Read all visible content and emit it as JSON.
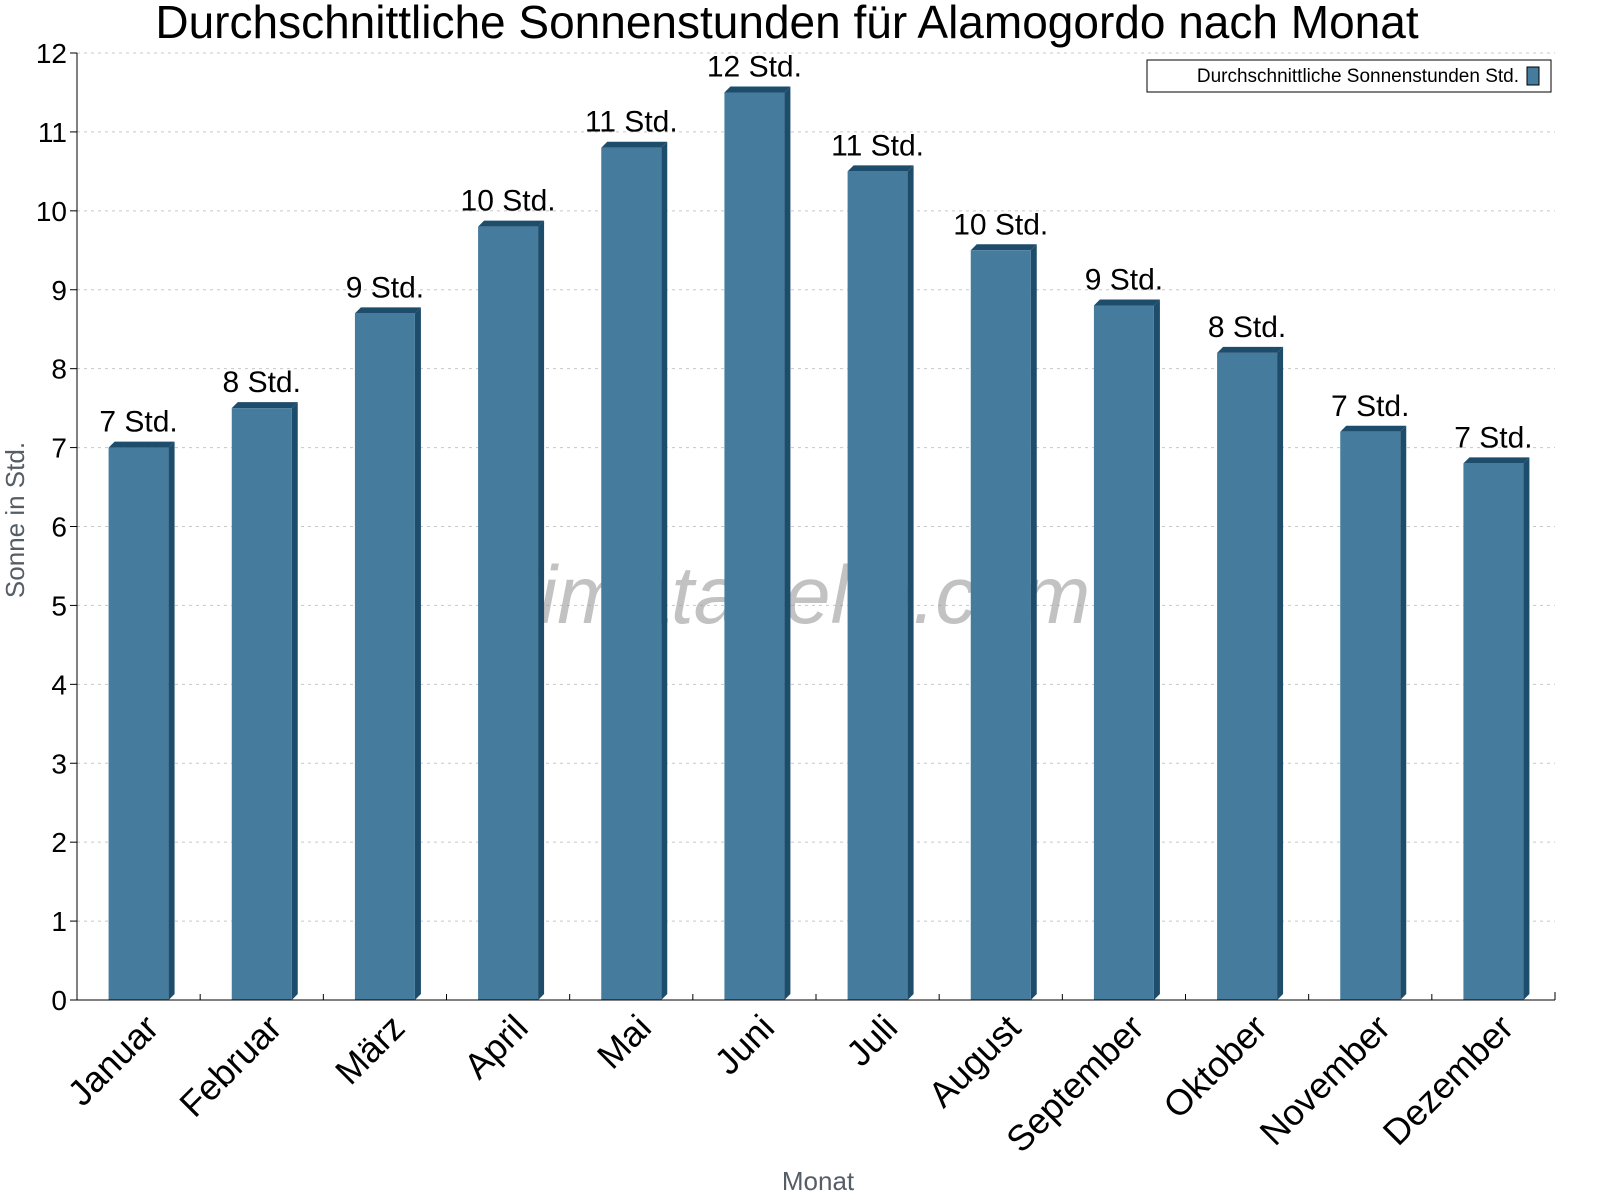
{
  "chart_data": {
    "type": "bar",
    "title": "Durchschnittliche Sonnenstunden für Alamogordo nach Monat",
    "xlabel": "Monat",
    "ylabel": "Sonne in Std.",
    "ylim": [
      0,
      12
    ],
    "yticks": [
      "0",
      "1",
      "2",
      "3",
      "4",
      "5",
      "6",
      "7",
      "8",
      "9",
      "10",
      "11",
      "12"
    ],
    "grid": true,
    "legend_position": "top-right",
    "categories": [
      "Januar",
      "Februar",
      "März",
      "April",
      "Mai",
      "Juni",
      "Juli",
      "August",
      "September",
      "Oktober",
      "November",
      "Dezember"
    ],
    "series": [
      {
        "name": "Durchschnittliche Sonnenstunden Std.",
        "color": "#457b9d",
        "values": [
          7.0,
          7.5,
          8.7,
          9.8,
          10.8,
          11.5,
          10.5,
          9.5,
          8.8,
          8.2,
          7.2,
          6.8
        ],
        "labels": [
          "7 Std.",
          "8 Std.",
          "9 Std.",
          "10 Std.",
          "11 Std.",
          "12 Std.",
          "11 Std.",
          "10 Std.",
          "9 Std.",
          "8 Std.",
          "7 Std.",
          "7 Std."
        ]
      }
    ],
    "watermark": "klimatabelle.com"
  }
}
